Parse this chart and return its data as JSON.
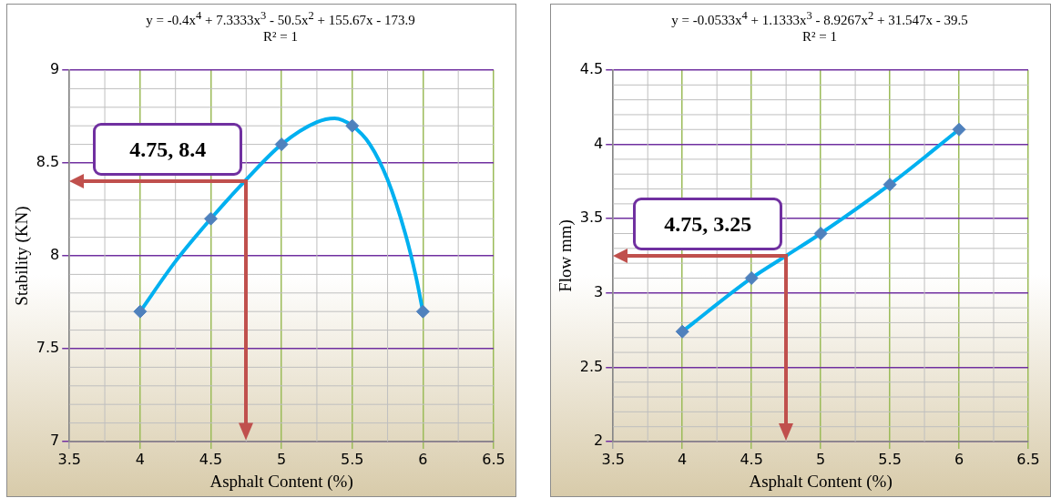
{
  "chart_data": [
    {
      "type": "scatter",
      "xlabel": "Asphalt Content (%)",
      "ylabel": "Stability (KN)",
      "xlim": [
        3.5,
        6.5
      ],
      "xticks": [
        3.5,
        4,
        4.5,
        5,
        5.5,
        6,
        6.5
      ],
      "ylim": [
        7,
        9
      ],
      "yticks": [
        7,
        7.5,
        8,
        8.5,
        9
      ],
      "grid": true,
      "annotations": [
        "y = -0.4x$^{4}$ + 7.3333x$^{3}$ - 50.5x$^{2}$ + 155.67x - 173.9",
        "R² = 1",
        {
          "text": "4.75, 8.4",
          "x": 4.75,
          "y": 8.4
        }
      ],
      "series": [
        {
          "type": "scatter",
          "marker": "diamond",
          "color": "#4f81bd",
          "x": [
            4,
            4.5,
            5,
            5.5,
            6
          ],
          "values": [
            7.7,
            8.2,
            8.6,
            8.7,
            7.7
          ]
        },
        {
          "type": "line",
          "marker": "none",
          "color": "#00b0f0",
          "x": [
            4,
            4.25,
            4.5,
            4.75,
            5,
            5.25,
            5.375,
            5.5,
            5.625,
            5.75,
            5.875,
            5.95,
            6
          ],
          "values": [
            7.7,
            7.97,
            8.2,
            8.41,
            8.6,
            8.72,
            8.74,
            8.7,
            8.6,
            8.41,
            8.12,
            7.89,
            7.7
          ]
        }
      ]
    },
    {
      "type": "scatter",
      "xlabel": "Asphalt Content (%)",
      "ylabel": "Flow mm)",
      "xlim": [
        3.5,
        6.5
      ],
      "xticks": [
        3.5,
        4,
        4.5,
        5,
        5.5,
        6,
        6.5
      ],
      "ylim": [
        2,
        4.5
      ],
      "yticks": [
        2,
        2.5,
        3,
        3.5,
        4,
        4.5
      ],
      "grid": true,
      "annotations": [
        "y = -0.0533x$^{4}$ + 1.1333x$^{3}$ - 8.9267x$^{2}$ + 31.547x - 39.5",
        "R² = 1",
        {
          "text": "4.75, 3.25",
          "x": 4.75,
          "y": 3.25
        }
      ],
      "series": [
        {
          "type": "scatter",
          "marker": "diamond",
          "color": "#4f81bd",
          "x": [
            4,
            4.5,
            5,
            5.5,
            6
          ],
          "values": [
            2.74,
            3.1,
            3.4,
            3.73,
            4.1
          ]
        },
        {
          "type": "line",
          "marker": "none",
          "color": "#00b0f0",
          "x": [
            4,
            4.5,
            4.75,
            5,
            5.5,
            6
          ],
          "values": [
            2.74,
            3.1,
            3.25,
            3.4,
            3.73,
            4.1
          ]
        }
      ]
    }
  ]
}
